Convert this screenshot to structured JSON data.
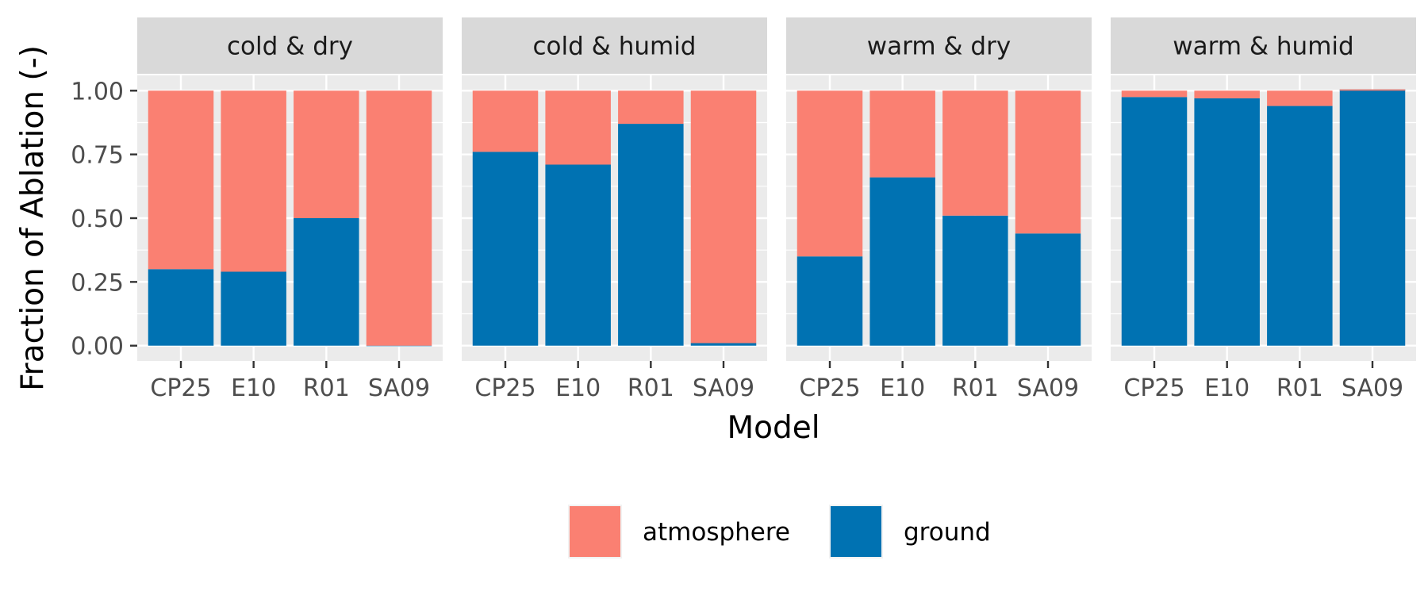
{
  "chart_data": {
    "type": "bar",
    "stacked": true,
    "xlabel": "Model",
    "ylabel": "Fraction of Ablation (-)",
    "ylim": [
      -0.06,
      1.06
    ],
    "yticks": [
      0.0,
      0.25,
      0.5,
      0.75,
      1.0
    ],
    "ytick_labels": [
      "0.00",
      "0.25",
      "0.50",
      "0.75",
      "1.00"
    ],
    "categories": [
      "CP25",
      "E10",
      "R01",
      "SA09"
    ],
    "legend": {
      "position": "bottom"
    },
    "series": [
      {
        "name": "atmosphere",
        "color": "#FA8072"
      },
      {
        "name": "ground",
        "color": "#0072B2"
      }
    ],
    "facets": [
      {
        "title": "cold & dry",
        "ground": [
          0.3,
          0.29,
          0.5,
          0.0
        ],
        "atmosphere": [
          0.7,
          0.71,
          0.5,
          1.0
        ]
      },
      {
        "title": "cold & humid",
        "ground": [
          0.76,
          0.71,
          0.87,
          0.01
        ],
        "atmosphere": [
          0.24,
          0.29,
          0.13,
          0.99
        ]
      },
      {
        "title": "warm & dry",
        "ground": [
          0.35,
          0.66,
          0.51,
          0.44
        ],
        "atmosphere": [
          0.65,
          0.34,
          0.49,
          0.56
        ]
      },
      {
        "title": "warm & humid",
        "ground": [
          0.975,
          0.97,
          0.94,
          1.005
        ],
        "atmosphere": [
          0.025,
          0.03,
          0.06,
          -0.005
        ]
      }
    ]
  }
}
